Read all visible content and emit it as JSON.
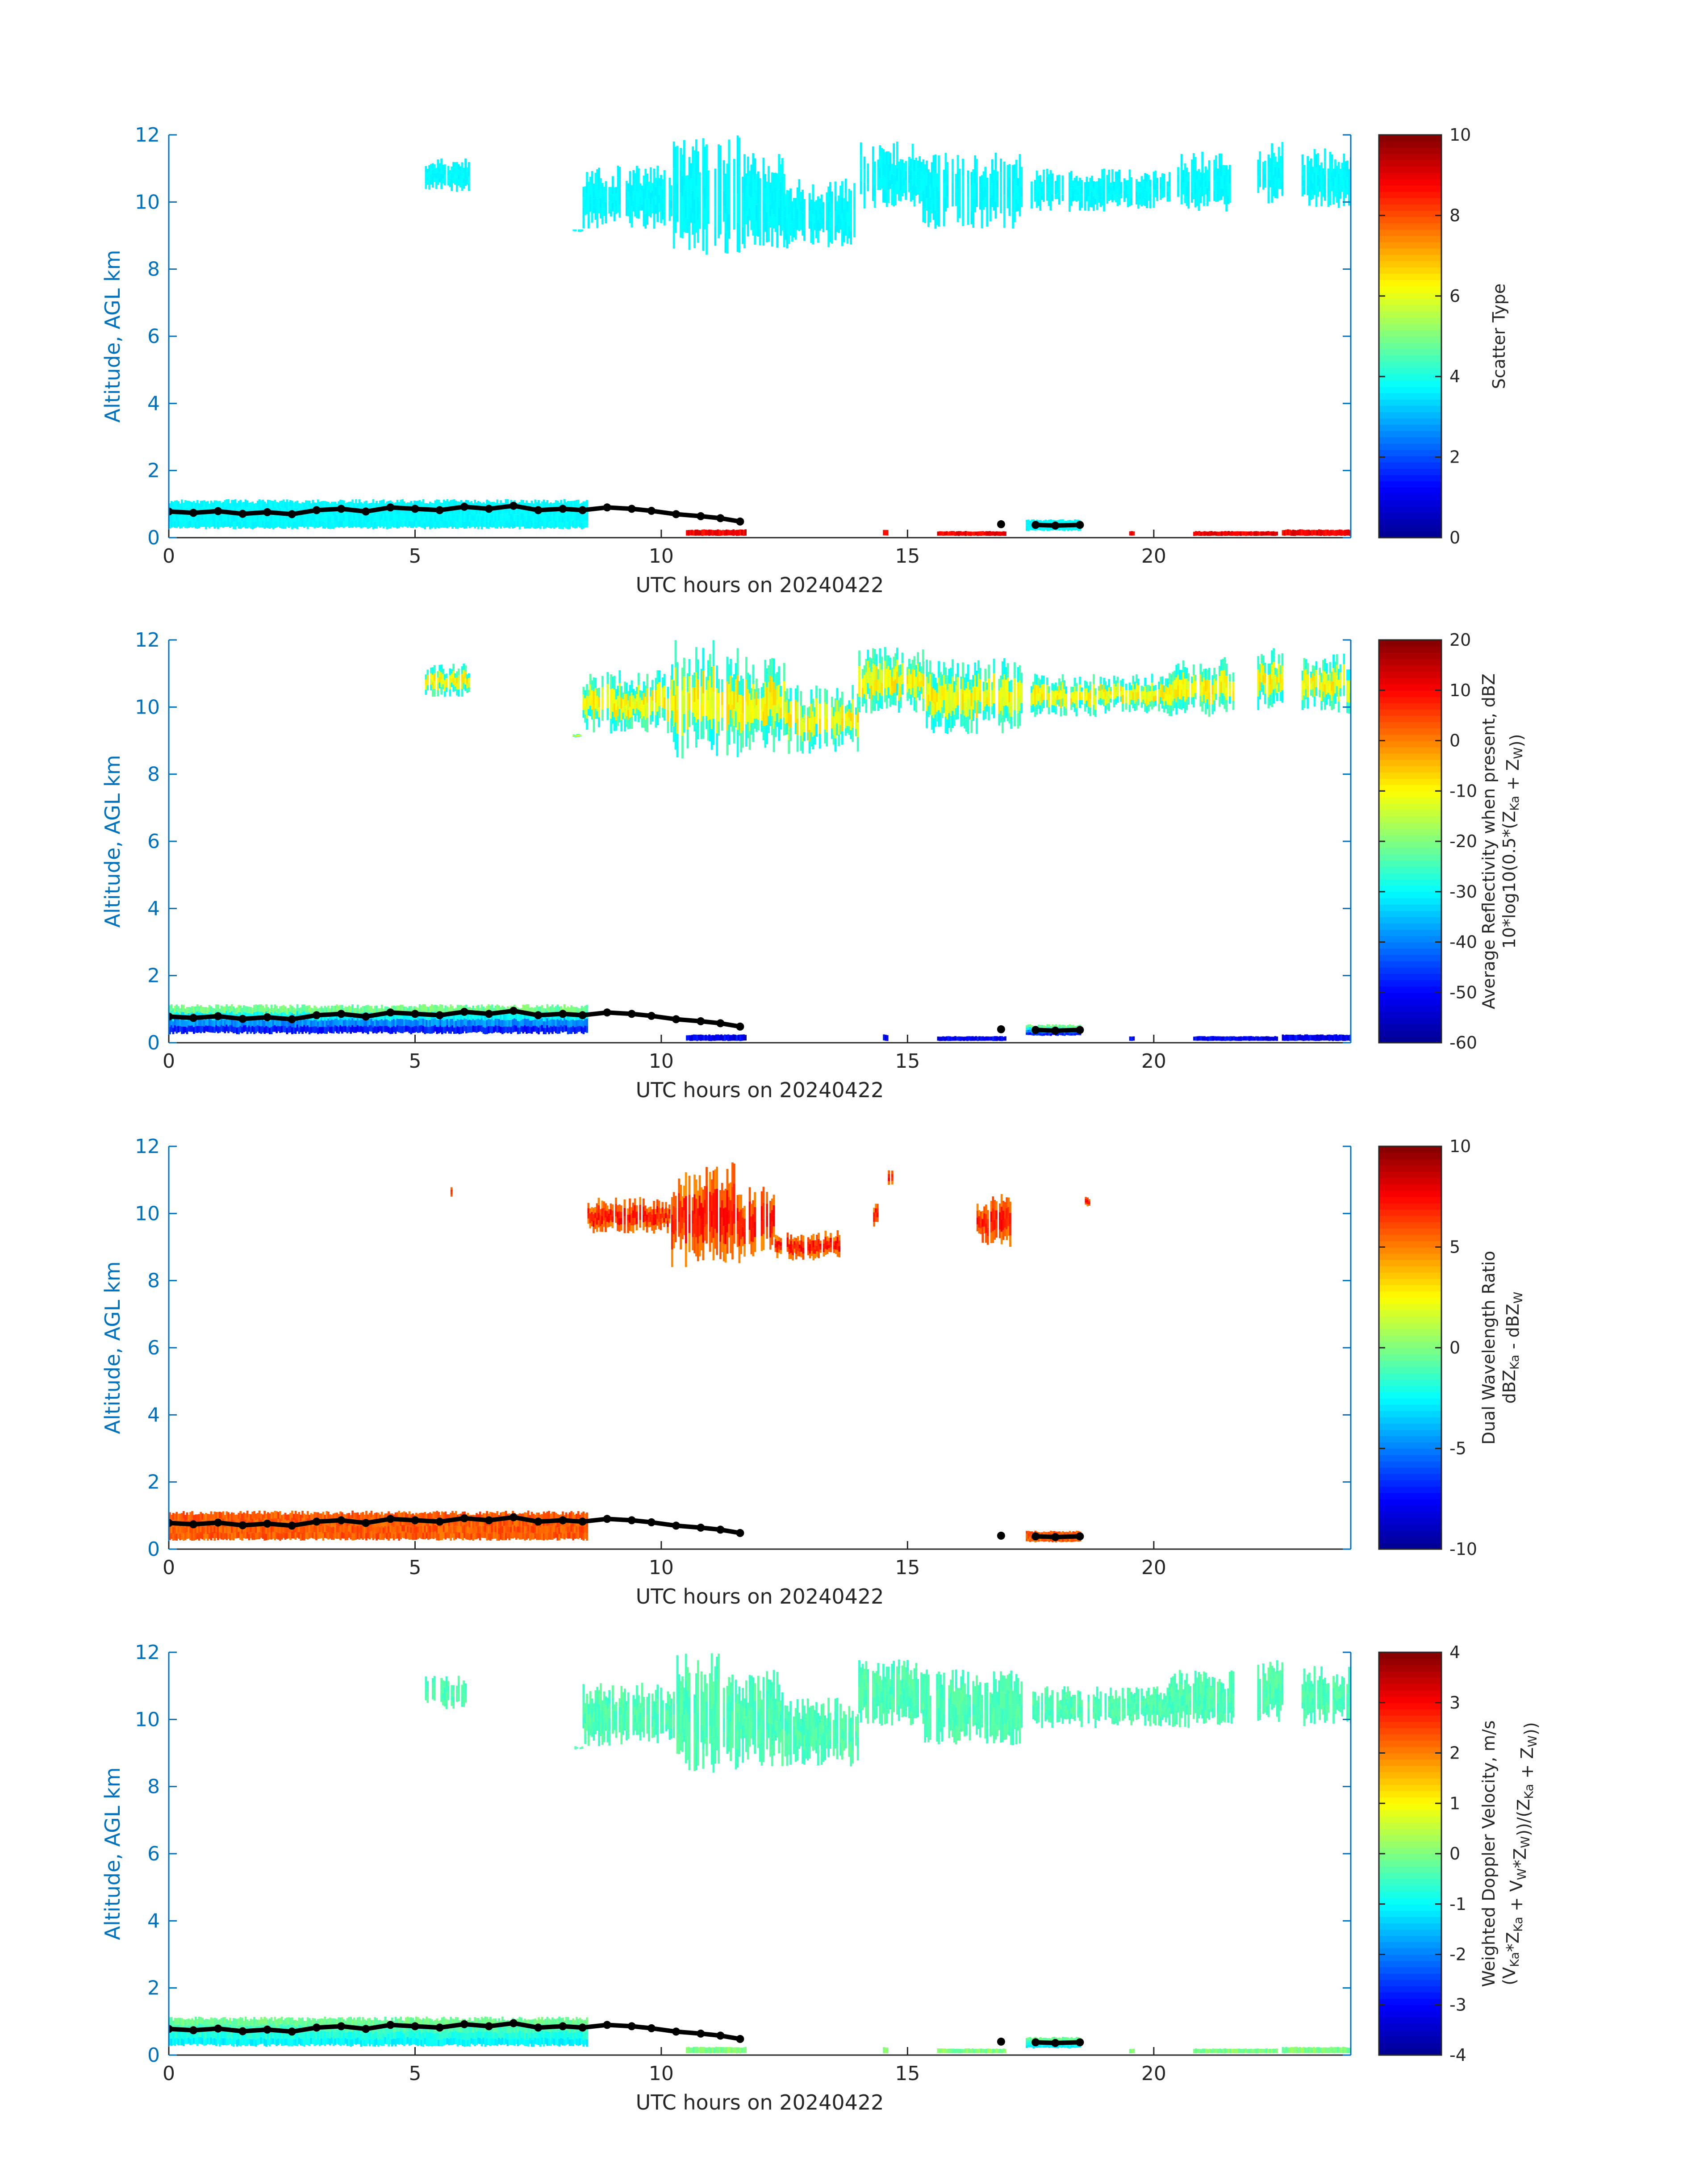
{
  "figure": {
    "palette": [
      "#00008F",
      "#0000FF",
      "#0080FF",
      "#00FFFF",
      "#80FF80",
      "#FFFF00",
      "#FF8000",
      "#FF0000",
      "#800000"
    ],
    "axis_color": "#0072BD",
    "text_color": "#262626"
  },
  "chart_data": [
    {
      "type": "heatmap",
      "id": "scatter_type",
      "xlabel": "UTC hours on 20240422",
      "ylabel": "Altitude, AGL km",
      "xlim": [
        0,
        24
      ],
      "ylim": [
        0,
        12
      ],
      "xticks": [
        0,
        5,
        10,
        15,
        20
      ],
      "yticks": [
        0,
        2,
        4,
        6,
        8,
        10,
        12
      ],
      "colorbar": {
        "label": "Scatter Type",
        "label_lines": [],
        "range": [
          0,
          10
        ],
        "ticks": [
          0,
          2,
          4,
          6,
          8,
          10
        ],
        "tick_labels": [
          "0",
          "2",
          "4",
          "6",
          "8",
          "10"
        ]
      },
      "field_mode": "type"
    },
    {
      "type": "heatmap",
      "id": "reflectivity",
      "xlabel": "UTC hours on 20240422",
      "ylabel": "Altitude, AGL km",
      "xlim": [
        0,
        24
      ],
      "ylim": [
        0,
        12
      ],
      "xticks": [
        0,
        5,
        10,
        15,
        20
      ],
      "yticks": [
        0,
        2,
        4,
        6,
        8,
        10,
        12
      ],
      "colorbar": {
        "label": "Average Reflectivity when present, dBZ",
        "label_lines": [
          [
            {
              "t": "10*log10(0.5*(Z"
            },
            {
              "t": "Ka",
              "sub": true
            },
            {
              "t": " + Z"
            },
            {
              "t": "W",
              "sub": true
            },
            {
              "t": "))"
            }
          ]
        ],
        "range": [
          -60,
          20
        ],
        "ticks": [
          -60,
          -50,
          -40,
          -30,
          -20,
          -10,
          0,
          10,
          20
        ],
        "tick_labels": [
          "-60",
          "-50",
          "-40",
          "-30",
          "-20",
          "-10",
          "0",
          "10",
          "20"
        ]
      },
      "field_mode": "refl"
    },
    {
      "type": "heatmap",
      "id": "dual_wavelength_ratio",
      "xlabel": "UTC hours on 20240422",
      "ylabel": "Altitude, AGL km",
      "xlim": [
        0,
        24
      ],
      "ylim": [
        0,
        12
      ],
      "xticks": [
        0,
        5,
        10,
        15,
        20
      ],
      "yticks": [
        0,
        2,
        4,
        6,
        8,
        10,
        12
      ],
      "colorbar": {
        "label": "Dual Wavelength Ratio",
        "label_lines": [
          [
            {
              "t": "dBZ"
            },
            {
              "t": "Ka",
              "sub": true
            },
            {
              "t": " - dBZ"
            },
            {
              "t": "W",
              "sub": true
            }
          ]
        ],
        "range": [
          -10,
          10
        ],
        "ticks": [
          -10,
          -5,
          0,
          5,
          10
        ],
        "tick_labels": [
          "-10",
          "-5",
          "0",
          "5",
          "10"
        ]
      },
      "field_mode": "dwr"
    },
    {
      "type": "heatmap",
      "id": "doppler_velocity",
      "xlabel": "UTC hours on 20240422",
      "ylabel": "Altitude, AGL km",
      "xlim": [
        0,
        24
      ],
      "ylim": [
        0,
        12
      ],
      "xticks": [
        0,
        5,
        10,
        15,
        20
      ],
      "yticks": [
        0,
        2,
        4,
        6,
        8,
        10,
        12
      ],
      "colorbar": {
        "label": "Weighted Doppler Velocity, m/s",
        "label_lines": [
          [
            {
              "t": "(V"
            },
            {
              "t": "Ka",
              "sub": true
            },
            {
              "t": "*Z"
            },
            {
              "t": "Ka",
              "sub": true
            },
            {
              "t": " + V"
            },
            {
              "t": "W",
              "sub": true
            },
            {
              "t": "*Z"
            },
            {
              "t": "W",
              "sub": true
            },
            {
              "t": "))/(Z"
            },
            {
              "t": "Ka",
              "sub": true
            },
            {
              "t": " + Z"
            },
            {
              "t": "W",
              "sub": true
            },
            {
              "t": "))"
            }
          ]
        ],
        "range": [
          -4,
          4
        ],
        "ticks": [
          -4,
          -3,
          -2,
          -1,
          0,
          1,
          2,
          3,
          4
        ],
        "tick_labels": [
          "-4",
          "-3",
          "-2",
          "-1",
          "0",
          "1",
          "2",
          "3",
          "4"
        ]
      },
      "field_mode": "vel"
    }
  ],
  "echo_regions": {
    "upper_cloud": [
      {
        "x0": 5.2,
        "x1": 6.1,
        "base": 10.3,
        "top": 11.3
      },
      {
        "x0": 8.2,
        "x1": 8.4,
        "base": 9.1,
        "top": 9.2
      },
      {
        "x0": 8.4,
        "x1": 10.2,
        "base": 9.2,
        "top": 11.1
      },
      {
        "x0": 10.2,
        "x1": 11.6,
        "base": 8.4,
        "top": 12.0
      },
      {
        "x0": 11.6,
        "x1": 12.5,
        "base": 8.6,
        "top": 11.5
      },
      {
        "x0": 12.5,
        "x1": 14.0,
        "base": 8.6,
        "top": 10.7
      },
      {
        "x0": 14.0,
        "x1": 15.3,
        "base": 9.8,
        "top": 11.8
      },
      {
        "x0": 15.3,
        "x1": 17.3,
        "base": 9.2,
        "top": 11.5
      },
      {
        "x0": 17.5,
        "x1": 19.0,
        "base": 9.7,
        "top": 11.0
      },
      {
        "x0": 19.0,
        "x1": 20.3,
        "base": 9.8,
        "top": 11.0
      },
      {
        "x0": 20.3,
        "x1": 21.6,
        "base": 9.7,
        "top": 11.5
      },
      {
        "x0": 22.1,
        "x1": 22.6,
        "base": 9.9,
        "top": 11.8
      },
      {
        "x0": 23.0,
        "x1": 24.0,
        "base": 9.8,
        "top": 11.6
      }
    ],
    "boundary_layer": [
      {
        "x0": 0.0,
        "x1": 8.5,
        "base": 0.25,
        "top": 1.15
      },
      {
        "x0": 17.4,
        "x1": 18.5,
        "base": 0.2,
        "top": 0.55
      }
    ],
    "surface_echo": [
      {
        "x0": 10.5,
        "x1": 11.7,
        "base": 0.05,
        "top": 0.25
      },
      {
        "x0": 14.5,
        "x1": 14.6,
        "base": 0.05,
        "top": 0.25
      },
      {
        "x0": 15.6,
        "x1": 17.0,
        "base": 0.05,
        "top": 0.2
      },
      {
        "x0": 19.5,
        "x1": 19.6,
        "base": 0.05,
        "top": 0.2
      },
      {
        "x0": 20.8,
        "x1": 22.5,
        "base": 0.05,
        "top": 0.2
      },
      {
        "x0": 22.6,
        "x1": 24.0,
        "base": 0.05,
        "top": 0.25
      }
    ],
    "dwr_upper": [
      {
        "x0": 5.65,
        "x1": 5.75,
        "base": 10.5,
        "top": 10.8
      },
      {
        "x0": 8.5,
        "x1": 10.2,
        "base": 9.4,
        "top": 10.5
      },
      {
        "x0": 10.2,
        "x1": 11.6,
        "base": 8.4,
        "top": 11.6
      },
      {
        "x0": 11.6,
        "x1": 12.3,
        "base": 8.7,
        "top": 10.8
      },
      {
        "x0": 12.3,
        "x1": 13.6,
        "base": 8.6,
        "top": 9.5
      },
      {
        "x0": 14.3,
        "x1": 14.4,
        "base": 9.6,
        "top": 10.3
      },
      {
        "x0": 14.6,
        "x1": 14.7,
        "base": 10.8,
        "top": 11.4
      },
      {
        "x0": 16.4,
        "x1": 17.1,
        "base": 9.0,
        "top": 10.6
      },
      {
        "x0": 18.6,
        "x1": 18.7,
        "base": 10.2,
        "top": 10.5
      }
    ]
  },
  "cloud_base": [
    [
      0.0,
      0.78
    ],
    [
      0.5,
      0.74
    ],
    [
      1.0,
      0.79
    ],
    [
      1.5,
      0.71
    ],
    [
      2.0,
      0.76
    ],
    [
      2.5,
      0.7
    ],
    [
      3.0,
      0.82
    ],
    [
      3.5,
      0.86
    ],
    [
      4.0,
      0.78
    ],
    [
      4.5,
      0.9
    ],
    [
      5.0,
      0.86
    ],
    [
      5.5,
      0.82
    ],
    [
      6.0,
      0.92
    ],
    [
      6.5,
      0.86
    ],
    [
      7.0,
      0.95
    ],
    [
      7.5,
      0.82
    ],
    [
      8.0,
      0.86
    ],
    [
      8.4,
      0.82
    ],
    [
      8.9,
      0.9
    ],
    [
      9.4,
      0.86
    ],
    [
      9.8,
      0.8
    ],
    [
      10.3,
      0.7
    ],
    [
      10.8,
      0.64
    ],
    [
      11.2,
      0.58
    ],
    [
      11.6,
      0.48
    ],
    [
      16.9,
      0.4
    ],
    [
      17.6,
      0.38
    ],
    [
      18.0,
      0.36
    ],
    [
      18.5,
      0.38
    ]
  ]
}
